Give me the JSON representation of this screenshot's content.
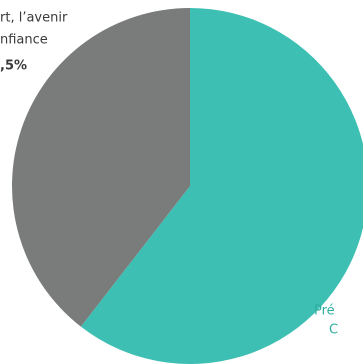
{
  "chart_data": {
    "type": "pie",
    "categories": [
      null,
      null
    ],
    "values": [
      60.5,
      39.5
    ],
    "colors": [
      "#3dbfb3",
      "#797c7a"
    ],
    "annotations": [
      "rt, l’avenir",
      "nfiance",
      ",5%",
      "Pré",
      "C"
    ]
  }
}
